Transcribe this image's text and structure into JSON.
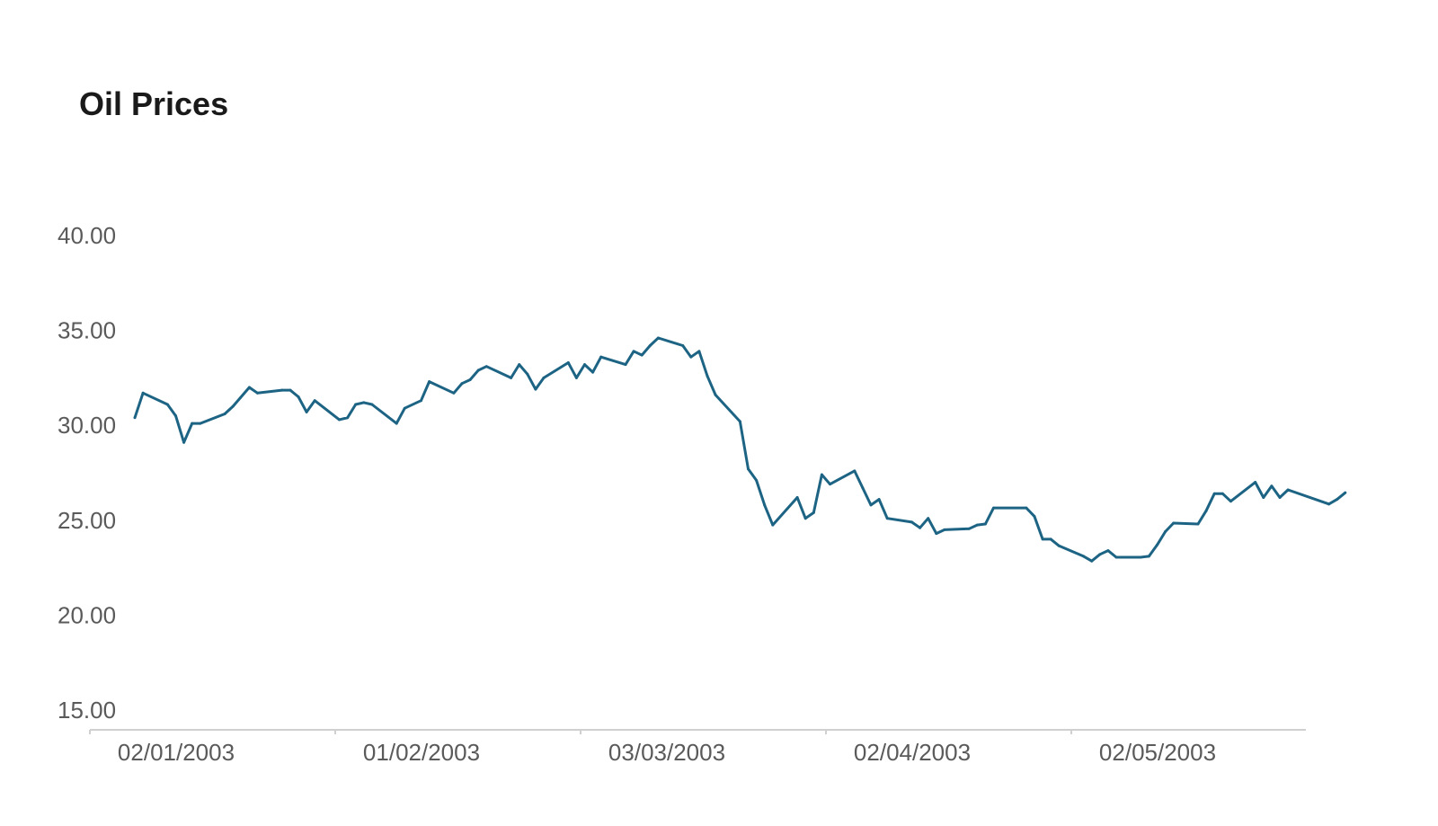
{
  "chart_data": {
    "type": "line",
    "title": "Oil Prices",
    "xlabel": "",
    "ylabel": "",
    "ylim": [
      15,
      40
    ],
    "yticks": [
      "15.00",
      "20.00",
      "25.00",
      "30.00",
      "35.00",
      "40.00"
    ],
    "xticks": [
      {
        "date": "2003-01-02",
        "label": "02/01/2003"
      },
      {
        "date": "2003-02-01",
        "label": "01/02/2003"
      },
      {
        "date": "2003-03-03",
        "label": "03/03/2003"
      },
      {
        "date": "2003-04-02",
        "label": "02/04/2003"
      },
      {
        "date": "2003-05-02",
        "label": "02/05/2003"
      }
    ],
    "grid": false,
    "line_color": "#1d6484",
    "series": [
      {
        "x": [
          "2003-01-02",
          "2003-01-03",
          "2003-01-06",
          "2003-01-07",
          "2003-01-08",
          "2003-01-09",
          "2003-01-10",
          "2003-01-13",
          "2003-01-14",
          "2003-01-16",
          "2003-01-17",
          "2003-01-20",
          "2003-01-21",
          "2003-01-22",
          "2003-01-23",
          "2003-01-24",
          "2003-01-27",
          "2003-01-28",
          "2003-01-29",
          "2003-01-30",
          "2003-01-31",
          "2003-02-03",
          "2003-02-04",
          "2003-02-06",
          "2003-02-07",
          "2003-02-10",
          "2003-02-11",
          "2003-02-12",
          "2003-02-13",
          "2003-02-14",
          "2003-02-17",
          "2003-02-18",
          "2003-02-19",
          "2003-02-20",
          "2003-02-21",
          "2003-02-24",
          "2003-02-25",
          "2003-02-26",
          "2003-02-27",
          "2003-02-28",
          "2003-03-03",
          "2003-03-04",
          "2003-03-05",
          "2003-03-06",
          "2003-03-07",
          "2003-03-10",
          "2003-03-11",
          "2003-03-12",
          "2003-03-13",
          "2003-03-14",
          "2003-03-17",
          "2003-03-18",
          "2003-03-19",
          "2003-03-20",
          "2003-03-21",
          "2003-03-24",
          "2003-03-25",
          "2003-03-26",
          "2003-03-27",
          "2003-03-28",
          "2003-03-31",
          "2003-04-01",
          "2003-04-02",
          "2003-04-03",
          "2003-04-04",
          "2003-04-07",
          "2003-04-08",
          "2003-04-09",
          "2003-04-10",
          "2003-04-11",
          "2003-04-14",
          "2003-04-15",
          "2003-04-16",
          "2003-04-17",
          "2003-04-21",
          "2003-04-22",
          "2003-04-23",
          "2003-04-24",
          "2003-04-25",
          "2003-04-28",
          "2003-04-29",
          "2003-04-30",
          "2003-05-01",
          "2003-05-02",
          "2003-05-05",
          "2003-05-06",
          "2003-05-07",
          "2003-05-08",
          "2003-05-09",
          "2003-05-12",
          "2003-05-13",
          "2003-05-14",
          "2003-05-15",
          "2003-05-16",
          "2003-05-19",
          "2003-05-20",
          "2003-05-21",
          "2003-05-22",
          "2003-05-23",
          "2003-05-28",
          "2003-05-29",
          "2003-05-30"
        ],
        "y": [
          30.4,
          31.7,
          31.1,
          30.5,
          29.1,
          30.1,
          30.1,
          30.6,
          31.0,
          32.0,
          31.7,
          31.85,
          31.85,
          31.5,
          30.7,
          31.3,
          30.3,
          30.4,
          31.1,
          31.2,
          31.1,
          30.1,
          30.9,
          31.3,
          32.3,
          31.7,
          32.2,
          32.4,
          32.9,
          33.1,
          32.5,
          33.2,
          32.7,
          31.9,
          32.5,
          33.3,
          32.5,
          33.2,
          32.8,
          33.6,
          33.2,
          33.9,
          33.7,
          34.2,
          34.6,
          34.2,
          33.6,
          33.9,
          32.6,
          31.6,
          30.2,
          27.7,
          27.1,
          25.8,
          24.75,
          26.2,
          25.1,
          25.4,
          27.4,
          26.9,
          27.6,
          26.7,
          25.8,
          26.1,
          25.1,
          24.9,
          24.6,
          25.1,
          24.3,
          24.5,
          24.55,
          24.75,
          24.8,
          25.65,
          25.65,
          25.2,
          24.0,
          24.0,
          23.65,
          23.1,
          22.85,
          23.2,
          23.4,
          23.05,
          23.05,
          23.1,
          23.7,
          24.4,
          24.85,
          24.8,
          25.5,
          26.4,
          26.4,
          26.0,
          27.0,
          26.2,
          26.8,
          26.2,
          26.6,
          25.85,
          26.1,
          26.45
        ]
      }
    ]
  }
}
